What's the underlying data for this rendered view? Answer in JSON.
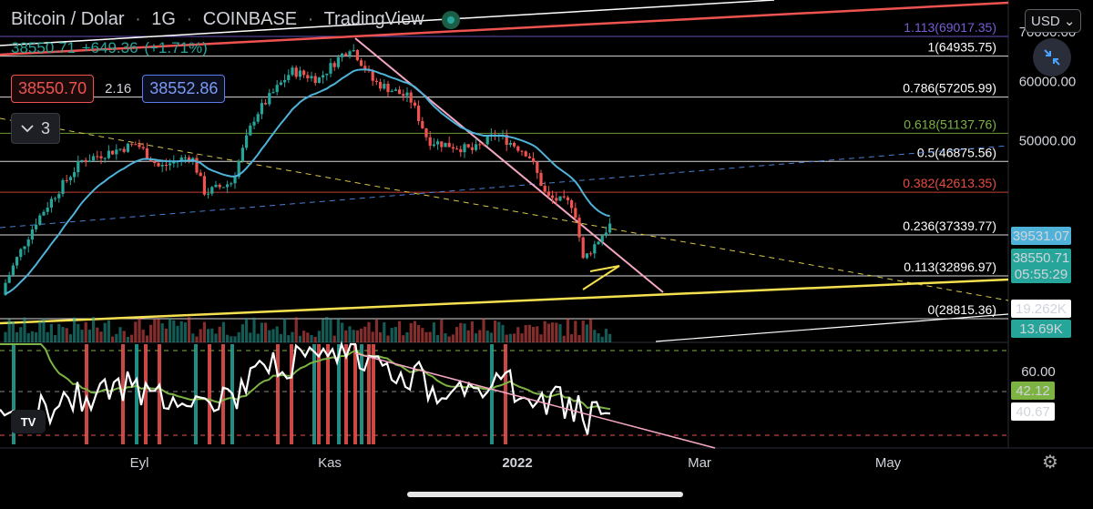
{
  "header": {
    "symbol": "Bitcoin / Dolar",
    "interval": "1G",
    "exchange": "COINBASE",
    "platform": "TradingView",
    "last_price": "38550.71",
    "change": "+649.36",
    "change_pct": "(+1.71%)",
    "bid": "38550.70",
    "spread": "2.16",
    "ask": "38552.86",
    "indicator_count": "3",
    "currency": "USD"
  },
  "colors": {
    "up": "#26a69a",
    "down": "#ef5350",
    "ema": "#4fb3d9",
    "trend_pink": "#f4a7c4",
    "support_yellow": "#f5e050",
    "upper_red": "#ef5350",
    "fib_purple": "#7b5cd6",
    "fib_red": "#e84c3d",
    "fib_green": "#7cb342",
    "rsi_line": "#ffffff",
    "rsi_ma": "#7cb342"
  },
  "chart_data": [
    {
      "type": "candlestick",
      "title": "Bitcoin / Dolar · 1G · COINBASE",
      "x_labels": [
        "Eyl",
        "Kas",
        "2022",
        "Mar",
        "May"
      ],
      "y_ticks": [
        "70000.00",
        "60000.00",
        "50000.00"
      ],
      "y_scale": "log",
      "ylim": [
        28000,
        72000
      ],
      "fibonacci": [
        {
          "level": "1.113",
          "price": "69017.35",
          "color": "#7b5cd6"
        },
        {
          "level": "1",
          "price": "64935.75",
          "color": "#ffffff"
        },
        {
          "level": "0.786",
          "price": "57205.99",
          "color": "#ffffff"
        },
        {
          "level": "0.618",
          "price": "51137.76",
          "color": "#7cb342"
        },
        {
          "level": "0.5",
          "price": "46875.56",
          "color": "#ffffff"
        },
        {
          "level": "0.382",
          "price": "42613.35",
          "color": "#e84c3d"
        },
        {
          "level": "0.236",
          "price": "37339.77",
          "color": "#ffffff"
        },
        {
          "level": "0.113",
          "price": "32896.97",
          "color": "#ffffff"
        },
        {
          "level": "0",
          "price": "28815.36",
          "color": "#ffffff"
        }
      ],
      "price_labels": [
        {
          "value": "39531.07",
          "bg": "#4fb3d9",
          "fg": "#000000"
        },
        {
          "value": "38550.71",
          "sub": "05:55:29",
          "bg": "#26a69a",
          "fg": "#000000"
        },
        {
          "value": "19.262K",
          "bg": "#ffffff",
          "fg": "#000000"
        },
        {
          "value": "13.69K",
          "bg": "#26a69a",
          "fg": "#000000"
        }
      ],
      "close_approx": [
        {
          "period": "Aug",
          "value": 47000
        },
        {
          "period": "Sep",
          "value": 43800
        },
        {
          "period": "Oct",
          "value": 61300
        },
        {
          "period": "Nov",
          "value": 57000
        },
        {
          "period": "Dec",
          "value": 46200
        },
        {
          "period": "Jan",
          "value": 38500
        }
      ]
    },
    {
      "type": "line",
      "title": "",
      "y_ticks": [
        "60.00"
      ],
      "value_labels": [
        {
          "value": "42.12",
          "bg": "#7cb342",
          "fg": "#ffffff"
        },
        {
          "value": "40.67",
          "bg": "#ffffff",
          "fg": "#000000"
        }
      ]
    }
  ]
}
